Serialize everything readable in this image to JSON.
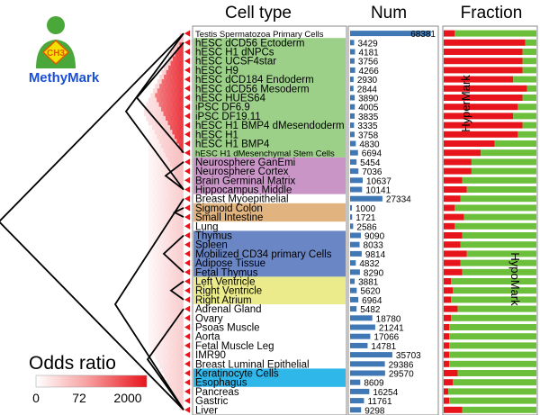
{
  "logo": {
    "text": "MethyMark",
    "badge": "CH3"
  },
  "headers": {
    "cell_type": "Cell type",
    "num": "Num",
    "fraction": "Fraction"
  },
  "legend": {
    "title": "Odds ratio",
    "ticks": [
      "0",
      "72",
      "2000"
    ]
  },
  "colors": {
    "hyper": "#e8141c",
    "hypo": "#6cbf3a",
    "num_bar": "#3f78b5",
    "embryonic": "#9cd089",
    "neural": "#c895c6",
    "gut": "#e0b37f",
    "immune": "#6b86c4",
    "heart": "#ebeb8b",
    "skin": "#30b7ea"
  },
  "chart_data": {
    "type": "bar",
    "title": "",
    "categories": [
      "Testis Spermatozoa Primary Cells",
      "hESC dCD56 Ectoderm",
      "hESC H1 dNPCs",
      "hESC UCSF4star",
      "hESC H9",
      "hESC dCD184 Endoderm",
      "hESC dCD56 Mesoderm",
      "hESC HUES64",
      "iPSC DF6.9",
      "iPSC DF19.11",
      "hESC H1 BMP4 dMesendoderm",
      "hESC H1",
      "hESC H1 BMP4",
      "hESC H1 dMesenchymal Stem Cells",
      "Neurosphere GanEmi",
      "Neurosphere Cortex",
      "Brain Germinal Matrix",
      "Hippocampus Middle",
      "Breast Myoepithelial",
      "Sigmoid Colon",
      "Small Intestine",
      "Lung",
      "Thymus",
      "Spleen",
      "Mobilized CD34 primary Cells",
      "Adipose Tissue",
      "Fetal Thymus",
      "Left Ventricle",
      "Right Ventricle",
      "Right Atrium",
      "Adrenal Gland",
      "Ovary",
      "Psoas Muscle",
      "Aorta",
      "Fetal Muscle Leg",
      "IMR90",
      "Breast Luminal Epithelial",
      "Keratinocyte Cells",
      "Esophagus",
      "Pancreas",
      "Gastric",
      "Liver"
    ],
    "groups": [
      {
        "name": "embryonic",
        "start": 1,
        "end": 13
      },
      {
        "name": "neural",
        "start": 14,
        "end": 17
      },
      {
        "name": "gut",
        "start": 19,
        "end": 20
      },
      {
        "name": "immune",
        "start": 22,
        "end": 26
      },
      {
        "name": "heart",
        "start": 27,
        "end": 29
      },
      {
        "name": "skin",
        "start": 37,
        "end": 38
      }
    ],
    "num": [
      68381,
      3429,
      4181,
      3756,
      4266,
      2930,
      2844,
      3890,
      4005,
      3835,
      3335,
      3758,
      4830,
      6694,
      5454,
      7036,
      10637,
      10141,
      27334,
      1000,
      1721,
      2586,
      9090,
      8033,
      9814,
      4832,
      8290,
      3881,
      5620,
      6964,
      5482,
      18780,
      21241,
      17066,
      14781,
      35703,
      29386,
      29570,
      8609,
      16254,
      11761,
      9298
    ],
    "num_xlim": [
      0,
      70000
    ],
    "fraction_series": [
      {
        "name": "HyperMark",
        "values": [
          0.12,
          0.88,
          0.85,
          0.85,
          0.85,
          0.75,
          0.9,
          0.85,
          0.8,
          0.75,
          0.85,
          0.8,
          0.55,
          0.4,
          0.3,
          0.3,
          0.2,
          0.25,
          0.18,
          0.12,
          0.22,
          0.12,
          0.2,
          0.18,
          0.25,
          0.18,
          0.2,
          0.08,
          0.1,
          0.08,
          0.15,
          0.08,
          0.06,
          0.06,
          0.06,
          0.06,
          0.06,
          0.15,
          0.1,
          0.05,
          0.06,
          0.2
        ]
      },
      {
        "name": "HypoMark",
        "values": [
          0.88,
          0.12,
          0.15,
          0.15,
          0.15,
          0.25,
          0.1,
          0.15,
          0.2,
          0.25,
          0.15,
          0.2,
          0.45,
          0.6,
          0.7,
          0.7,
          0.8,
          0.75,
          0.82,
          0.88,
          0.78,
          0.88,
          0.8,
          0.82,
          0.75,
          0.82,
          0.8,
          0.92,
          0.9,
          0.92,
          0.85,
          0.92,
          0.94,
          0.94,
          0.94,
          0.94,
          0.94,
          0.85,
          0.9,
          0.95,
          0.94,
          0.8
        ]
      }
    ],
    "fraction_xlim": [
      0,
      1
    ]
  }
}
